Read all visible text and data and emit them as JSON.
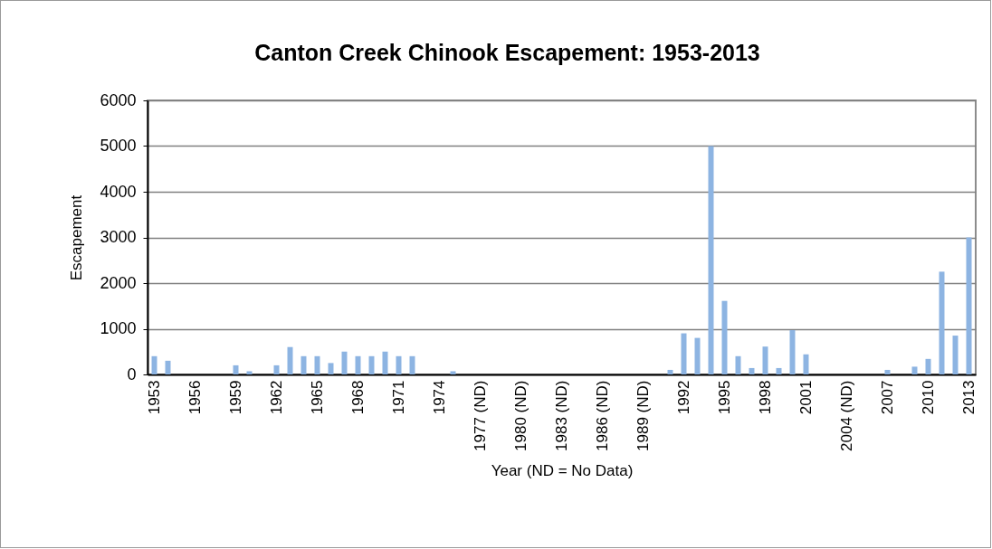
{
  "chart_data": {
    "type": "bar",
    "title": "Canton Creek Chinook Escapement: 1953-2013",
    "xlabel": "Year (ND = No Data)",
    "ylabel": "Escapement",
    "categories": [
      "1953",
      null,
      null,
      "1956",
      null,
      null,
      "1959",
      null,
      null,
      "1962",
      null,
      null,
      "1965",
      null,
      null,
      "1968",
      null,
      null,
      "1971",
      null,
      null,
      "1974",
      null,
      null,
      "1977 (ND)",
      null,
      null,
      "1980 (ND)",
      null,
      null,
      "1983 (ND)",
      null,
      null,
      "1986 (ND)",
      null,
      null,
      "1989 (ND)",
      null,
      null,
      "1992",
      null,
      null,
      "1995",
      null,
      null,
      "1998",
      null,
      null,
      "2001",
      null,
      null,
      "2004 (ND)",
      null,
      null,
      "2007",
      null,
      null,
      "2010",
      null,
      null,
      "2013"
    ],
    "values": [
      400,
      300,
      0,
      0,
      0,
      0,
      200,
      70,
      0,
      200,
      600,
      400,
      400,
      250,
      500,
      400,
      400,
      500,
      400,
      400,
      0,
      0,
      70,
      0,
      null,
      0,
      0,
      null,
      0,
      0,
      null,
      0,
      0,
      null,
      0,
      0,
      null,
      0,
      100,
      900,
      800,
      5000,
      1610,
      400,
      140,
      610,
      140,
      970,
      440,
      0,
      0,
      null,
      0,
      0,
      100,
      0,
      170,
      340,
      2250,
      850,
      3000
    ],
    "color": "#8db4e2",
    "ylim": [
      0,
      6000
    ],
    "yticks": [
      0,
      1000,
      2000,
      3000,
      4000,
      5000,
      6000
    ],
    "grid": "y"
  }
}
